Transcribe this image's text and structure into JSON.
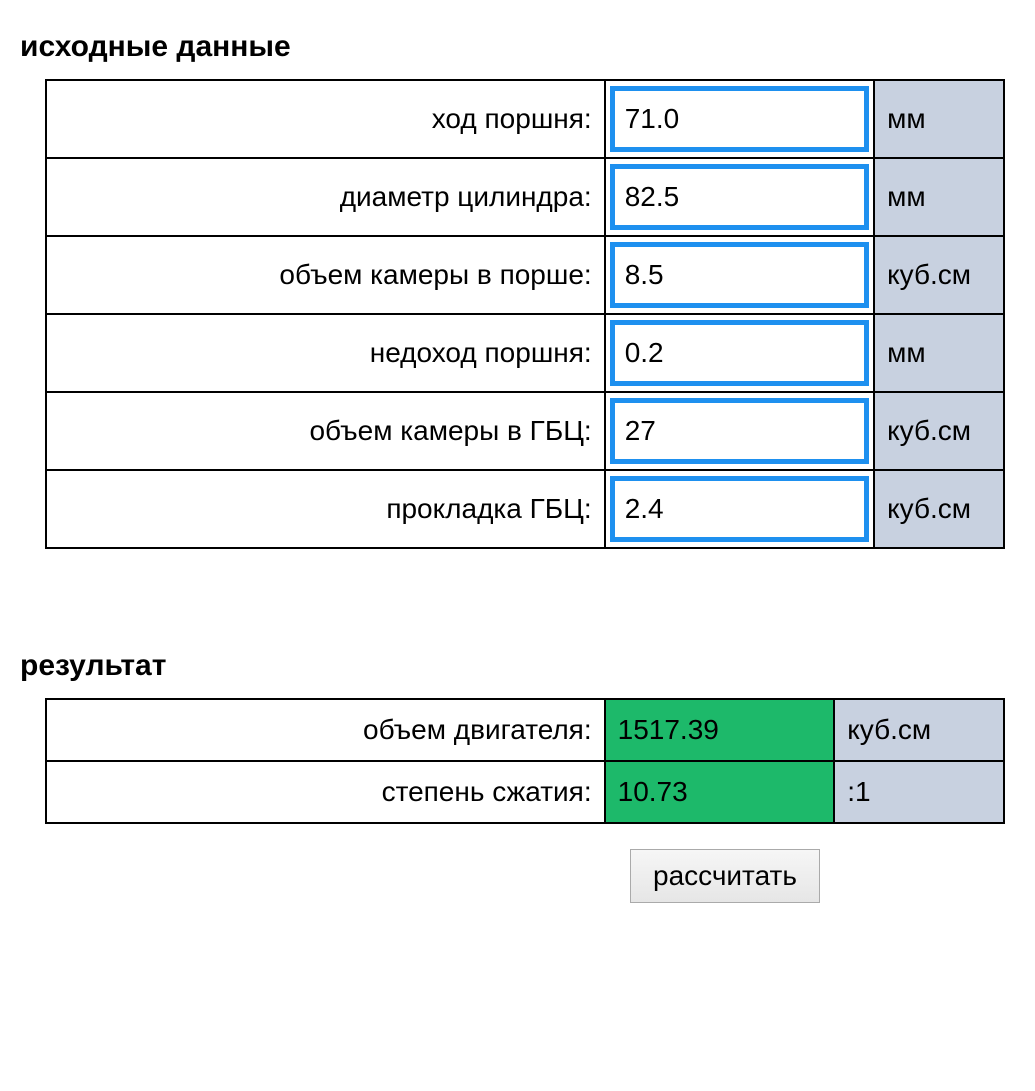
{
  "input_section": {
    "title": "исходные данные",
    "rows": [
      {
        "label": "ход поршня:",
        "value": "71.0",
        "unit": "мм"
      },
      {
        "label": "диаметр цилиндра:",
        "value": "82.5",
        "unit": "мм"
      },
      {
        "label": "объем камеры в порше:",
        "value": "8.5",
        "unit": "куб.см"
      },
      {
        "label": "недоход поршня:",
        "value": "0.2",
        "unit": "мм"
      },
      {
        "label": "объем камеры в ГБЦ:",
        "value": "27",
        "unit": "куб.см"
      },
      {
        "label": "прокладка ГБЦ:",
        "value": "2.4",
        "unit": "куб.см"
      }
    ]
  },
  "result_section": {
    "title": "результат",
    "rows": [
      {
        "label": "объем двигателя:",
        "value": "1517.39",
        "unit": "куб.см"
      },
      {
        "label": "степень сжатия:",
        "value": "10.73",
        "unit": ":1"
      }
    ]
  },
  "button_label": "рассчитать",
  "colors": {
    "input_border": "#1e90ef",
    "unit_bg": "#c8d1e0",
    "result_bg": "#1db96a",
    "border": "#000000"
  }
}
